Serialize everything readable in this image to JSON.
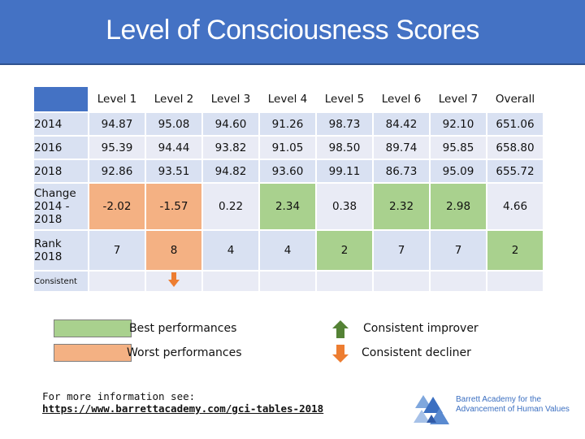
{
  "title": "Level of Consciousness Scores",
  "table": {
    "headers": [
      "Level 1",
      "Level 2",
      "Level 3",
      "Level 4",
      "Level 5",
      "Level 6",
      "Level 7",
      "Overall"
    ],
    "rows": [
      {
        "label": "2014",
        "values": [
          "94.87",
          "95.08",
          "94.60",
          "91.26",
          "98.73",
          "84.42",
          "92.10",
          "651.06"
        ]
      },
      {
        "label": "2016",
        "values": [
          "95.39",
          "94.44",
          "93.82",
          "91.05",
          "98.50",
          "89.74",
          "95.85",
          "658.80"
        ]
      },
      {
        "label": "2018",
        "values": [
          "92.86",
          "93.51",
          "94.82",
          "93.60",
          "99.11",
          "86.73",
          "95.09",
          "655.72"
        ]
      },
      {
        "label": "Change 2014 - 2018",
        "values": [
          "-2.02",
          "-1.57",
          "0.22",
          "2.34",
          "0.38",
          "2.32",
          "2.98",
          "4.66"
        ]
      },
      {
        "label": "Rank 2018",
        "values": [
          "7",
          "8",
          "4",
          "4",
          "2",
          "7",
          "7",
          "2"
        ]
      }
    ],
    "consistent_label": "Consistent"
  },
  "legend": {
    "best": "Best performances",
    "worst": "Worst performances",
    "improver": "Consistent improver",
    "decliner": "Consistent decliner"
  },
  "colors": {
    "best": "#a9d18e",
    "worst": "#f4b183",
    "improver": "#548235",
    "decliner": "#ed7d31",
    "header": "#4472c4"
  },
  "footer": {
    "text": "For more information see:",
    "link": "https://www.barrettacademy.com/gci-tables-2018"
  },
  "logo": {
    "line1": "Barrett Academy for the",
    "line2": "Advancement of Human Values"
  }
}
